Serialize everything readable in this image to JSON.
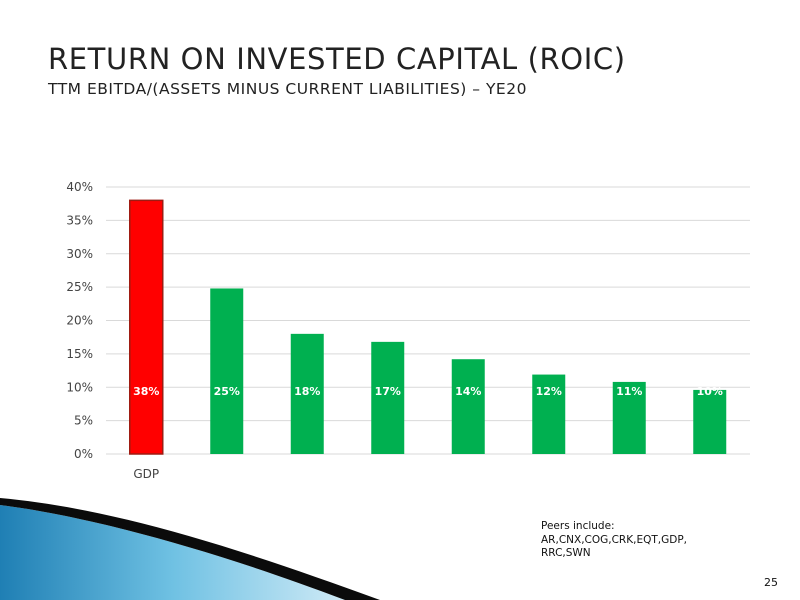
{
  "slide": {
    "title": "RETURN ON INVESTED CAPITAL (ROIC)",
    "subtitle": "TTM EBITDA/(ASSETS MINUS CURRENT LIABILITIES) – YE20",
    "peers_note_line1": "Peers include:",
    "peers_note_line2": "AR,CNX,COG,CRK,EQT,GDP,",
    "peers_note_line3": "RRC,SWN",
    "page_number": "25"
  },
  "colors": {
    "highlight": "#ff0000",
    "highlight_border": "#9e1b12",
    "peer": "#00b050",
    "grid": "#d9d9d9"
  },
  "chart_data": {
    "type": "bar",
    "categories": [
      "GDP",
      "",
      "",
      "",
      "",
      "",
      "",
      ""
    ],
    "values": [
      38,
      25,
      18,
      17,
      14,
      12,
      11,
      10
    ],
    "bar_heights": [
      38,
      24.8,
      18,
      16.8,
      14.2,
      11.9,
      10.8,
      9.6
    ],
    "data_labels": [
      "38%",
      "25%",
      "18%",
      "17%",
      "14%",
      "12%",
      "11%",
      "10%"
    ],
    "y_ticks": [
      "0%",
      "5%",
      "10%",
      "15%",
      "20%",
      "25%",
      "30%",
      "35%",
      "40%"
    ],
    "ylim": [
      0,
      40
    ],
    "grid": true,
    "legend": "none",
    "highlight_index": 0
  }
}
